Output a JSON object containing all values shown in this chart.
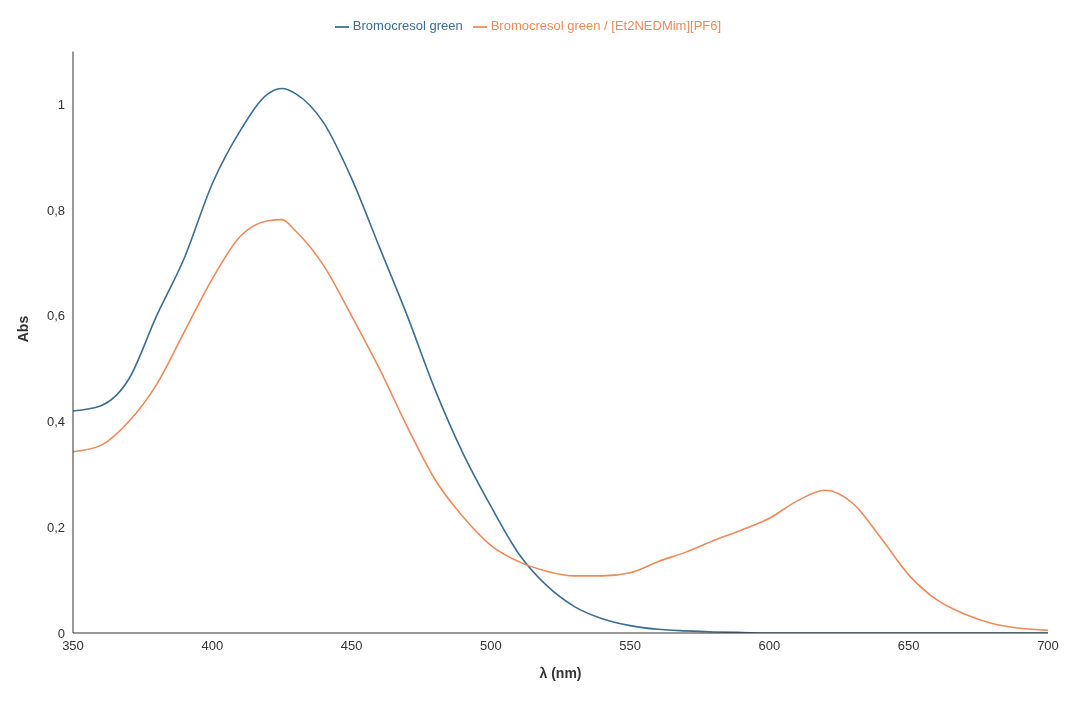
{
  "chart_data": {
    "type": "line",
    "xlabel": "λ (nm)",
    "ylabel": "Abs",
    "x": [
      350,
      360,
      370,
      380,
      390,
      400,
      410,
      420,
      425,
      430,
      440,
      450,
      460,
      470,
      480,
      490,
      500,
      510,
      520,
      530,
      540,
      550,
      560,
      570,
      580,
      590,
      600,
      610,
      620,
      630,
      640,
      650,
      660,
      670,
      680,
      690,
      700
    ],
    "series": [
      {
        "name": "Bromocresol green",
        "color": "#3b6e8f",
        "values": [
          0.42,
          0.43,
          0.48,
          0.6,
          0.71,
          0.85,
          0.95,
          1.02,
          1.03,
          1.02,
          0.965,
          0.86,
          0.73,
          0.6,
          0.46,
          0.34,
          0.24,
          0.15,
          0.09,
          0.05,
          0.027,
          0.014,
          0.007,
          0.004,
          0.002,
          0.001,
          0,
          0,
          0,
          0,
          0,
          0,
          0,
          0,
          0,
          0,
          0
        ]
      },
      {
        "name": "Bromocresol green / [Et2NEDMim][PF6]",
        "color": "#ee8a5a",
        "values": [
          0.343,
          0.355,
          0.4,
          0.47,
          0.57,
          0.67,
          0.75,
          0.78,
          0.782,
          0.76,
          0.695,
          0.6,
          0.5,
          0.39,
          0.29,
          0.22,
          0.166,
          0.135,
          0.117,
          0.108,
          0.108,
          0.114,
          0.135,
          0.153,
          0.175,
          0.195,
          0.217,
          0.25,
          0.27,
          0.245,
          0.18,
          0.11,
          0.063,
          0.036,
          0.018,
          0.009,
          0.005
        ]
      }
    ],
    "xlim": [
      350,
      700
    ],
    "xticks": [
      350,
      400,
      450,
      500,
      550,
      600,
      650,
      700
    ],
    "ylim": [
      0,
      1.1
    ],
    "yticks": [
      0,
      {
        "value": 0.2,
        "label": "0,2"
      },
      {
        "value": 0.4,
        "label": "0,4"
      },
      {
        "value": 0.6,
        "label": "0,6"
      },
      {
        "value": 0.8,
        "label": "0,8"
      },
      1
    ],
    "legend": "top",
    "grid": false,
    "marker": "none",
    "line_style": "solid"
  }
}
